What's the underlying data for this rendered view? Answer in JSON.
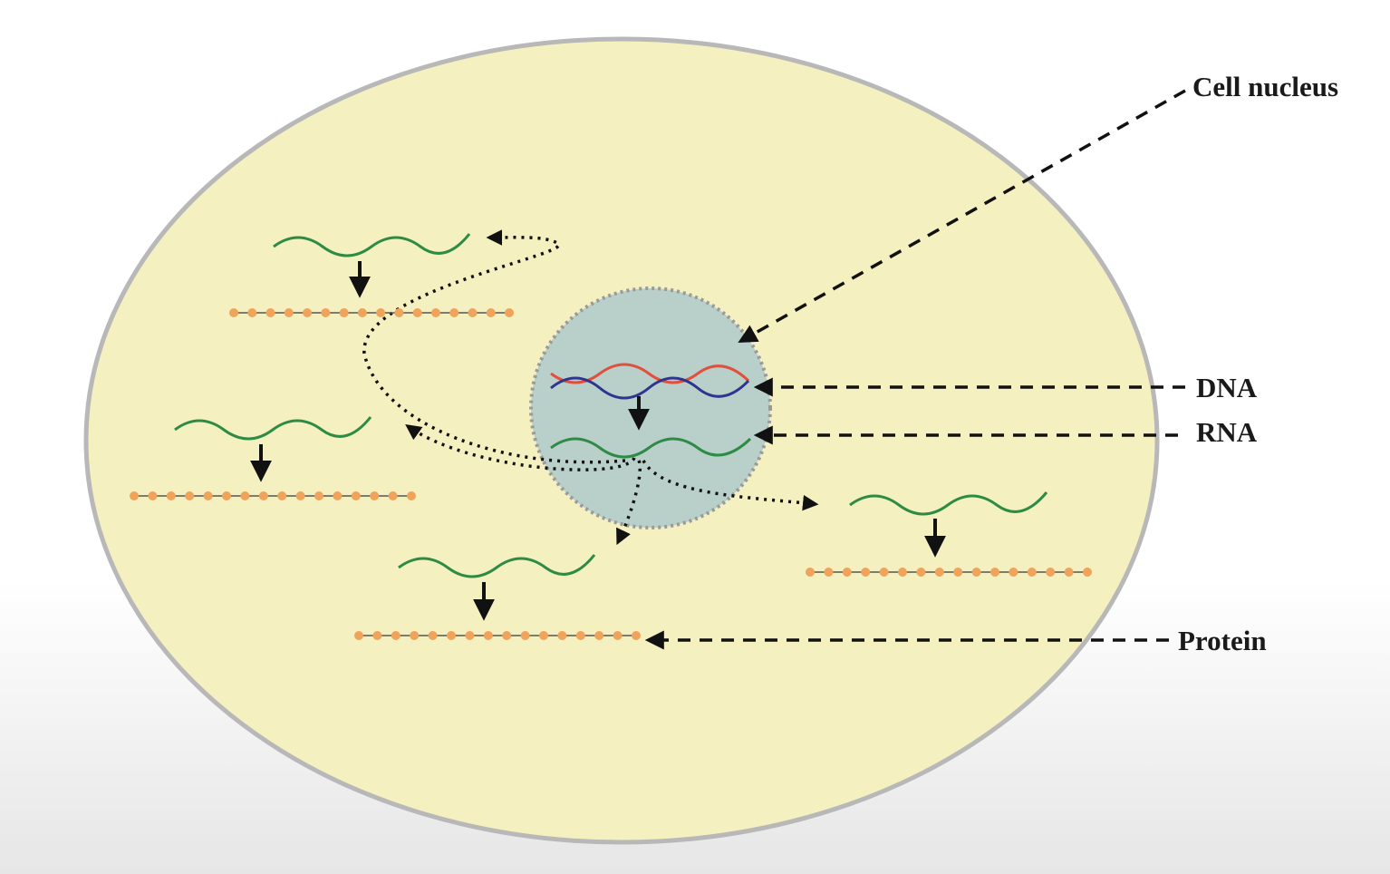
{
  "labels": {
    "cell_nucleus": "Cell nucleus",
    "dna": "DNA",
    "rna": "RNA",
    "protein": "Protein"
  },
  "colors": {
    "cytoplasm": "#f5f0c0",
    "cell_border": "#b8b8b8",
    "nucleus_fill": "#b9cfc9",
    "nucleus_border": "#9a9a9a",
    "dna_strand_a": "#e0503a",
    "dna_strand_b": "#2e3590",
    "rna": "#2e8b46",
    "protein_bead": "#f0a35a",
    "arrow": "#111111"
  }
}
